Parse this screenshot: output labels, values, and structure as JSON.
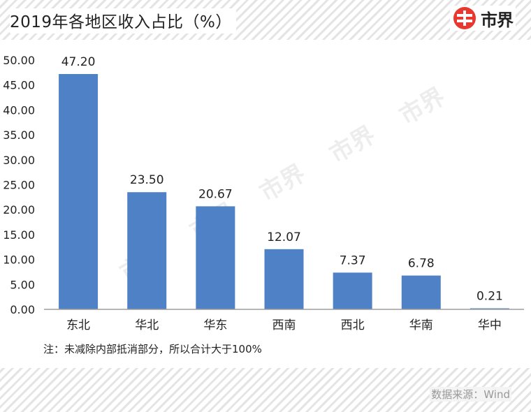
{
  "header": {
    "title": "2019年各地区收入占比（%）",
    "logo_text": "市界",
    "logo_color": "#e8382f"
  },
  "note": "注：未减除内部抵消部分，所以合计大于100%",
  "source": "数据来源：Wind",
  "watermark": "市界",
  "colors": {
    "bar": "#4f81c7",
    "axis": "#9e9e9e"
  },
  "chart_data": {
    "type": "bar",
    "title": "2019年各地区收入占比（%）",
    "xlabel": "",
    "ylabel": "",
    "categories": [
      "东北",
      "华北",
      "华东",
      "西南",
      "西北",
      "华南",
      "华中"
    ],
    "values": [
      47.2,
      23.5,
      20.67,
      12.07,
      7.37,
      6.78,
      0.21
    ],
    "data_labels": [
      "47.20",
      "23.50",
      "20.67",
      "12.07",
      "7.37",
      "6.78",
      "0.21"
    ],
    "ylim": [
      0,
      50
    ],
    "yticks": [
      "0.00",
      "5.00",
      "10.00",
      "15.00",
      "20.00",
      "25.00",
      "30.00",
      "35.00",
      "40.00",
      "45.00",
      "50.00"
    ],
    "grid": false,
    "legend": "none"
  }
}
